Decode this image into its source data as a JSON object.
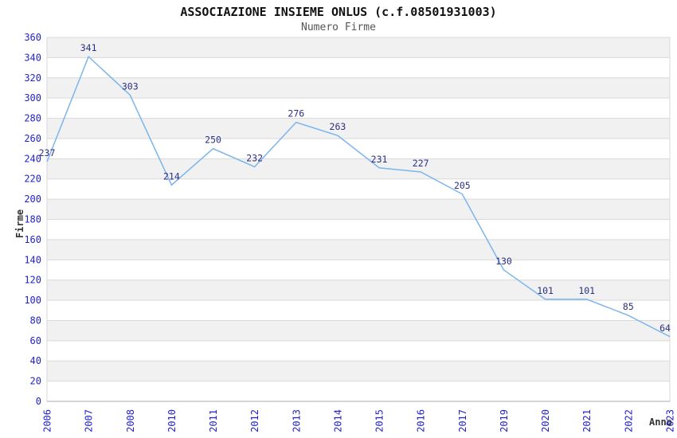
{
  "chart_data": {
    "type": "line",
    "title": "ASSOCIAZIONE INSIEME ONLUS (c.f.08501931003)",
    "subtitle": "Numero Firme",
    "xlabel": "Anno",
    "ylabel": "Firme",
    "categories": [
      "2006",
      "2007",
      "2008",
      "2010",
      "2011",
      "2012",
      "2013",
      "2014",
      "2015",
      "2016",
      "2017",
      "2019",
      "2020",
      "2021",
      "2022",
      "2023"
    ],
    "values": [
      237,
      341,
      303,
      214,
      250,
      232,
      276,
      263,
      231,
      227,
      205,
      130,
      101,
      101,
      85,
      64
    ],
    "ylim": [
      0,
      360
    ],
    "ytick_step": 20,
    "legend_position": "none",
    "grid": "horizontal gridlines every 20 with alternating shaded bands",
    "colors": {
      "line": "#7cb5ec",
      "band": "#f1f1f1",
      "gridline": "#d9d9d9",
      "axis_line": "#aaaaaa",
      "tick_label": "#2222cc",
      "data_label": "#2b2f84",
      "title": "#111111",
      "subtitle": "#555555",
      "axis_title": "#333333"
    }
  }
}
